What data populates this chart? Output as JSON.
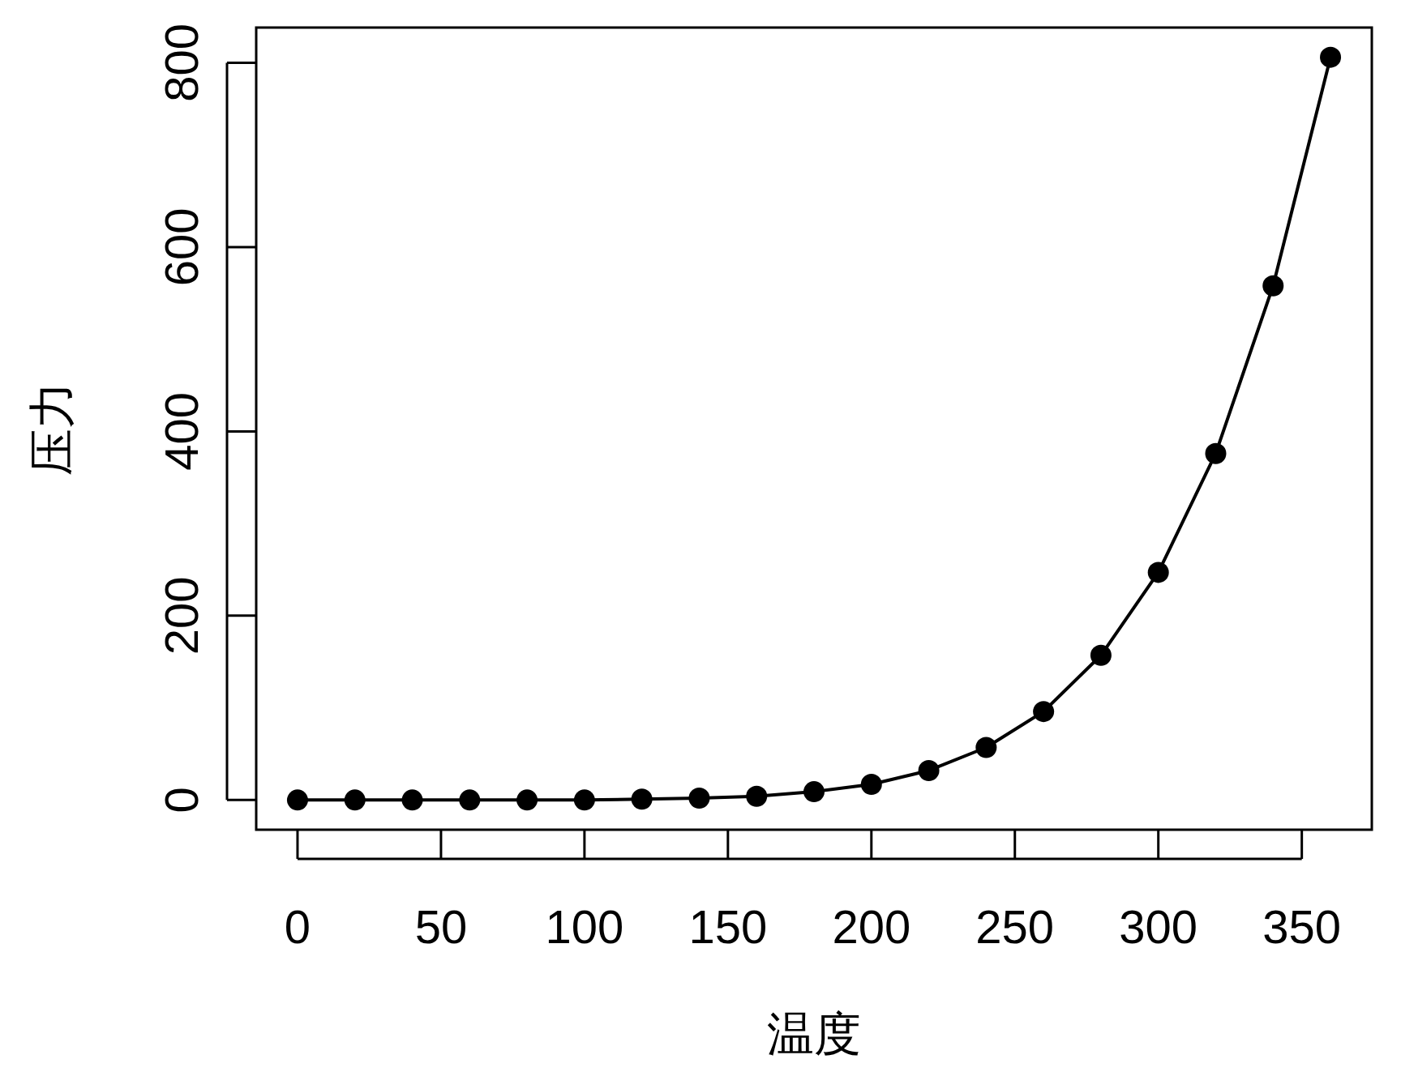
{
  "chart_data": {
    "type": "line",
    "xlabel": "温度",
    "ylabel": "压力",
    "x": [
      0,
      20,
      40,
      60,
      80,
      100,
      120,
      140,
      160,
      180,
      200,
      220,
      240,
      260,
      280,
      300,
      320,
      340,
      360
    ],
    "series": [
      {
        "color": "#000000",
        "values": [
          0,
          0,
          0,
          0,
          0,
          0,
          1,
          2,
          4,
          9,
          17,
          32,
          57,
          96,
          157,
          247,
          376,
          558,
          806
        ]
      }
    ],
    "xlim": [
      -14.4,
      374.4
    ],
    "xticks": [
      0,
      50,
      100,
      150,
      200,
      250,
      300,
      350
    ],
    "ylim": [
      -32.24,
      838.24
    ],
    "yticks": [
      0,
      200,
      400,
      600,
      800
    ],
    "marker": "circle",
    "line_style": "solid"
  }
}
